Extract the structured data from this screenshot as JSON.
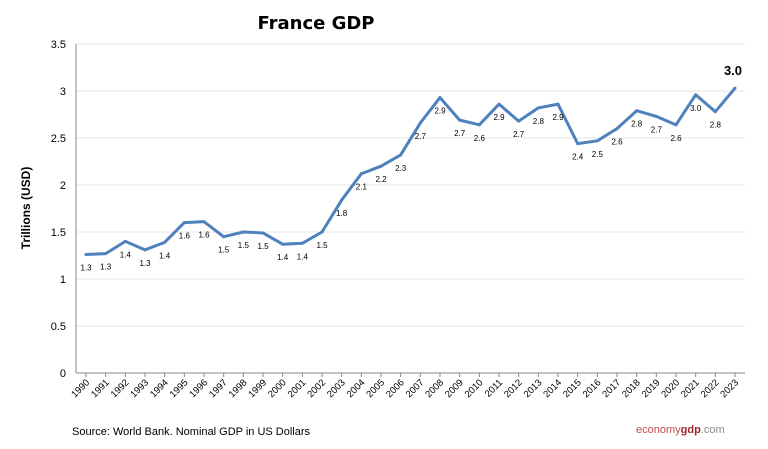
{
  "chart_data": {
    "type": "line",
    "title": "France GDP",
    "xlabel": "",
    "ylabel": "Trillions (USD)",
    "ylim": [
      0,
      3.5
    ],
    "yticks": [
      "0",
      "0.5",
      "1",
      "1.5",
      "2",
      "2.5",
      "3",
      "3.5"
    ],
    "grid": true,
    "line_color": "#4f81bd",
    "x": [
      "1990",
      "1991",
      "1992",
      "1993",
      "1994",
      "1995",
      "1996",
      "1997",
      "1998",
      "1999",
      "2000",
      "2001",
      "2002",
      "2003",
      "2004",
      "2005",
      "2006",
      "2007",
      "2008",
      "2009",
      "2010",
      "2011",
      "2012",
      "2013",
      "2014",
      "2015",
      "2016",
      "2017",
      "2018",
      "2019",
      "2020",
      "2021",
      "2022",
      "2023"
    ],
    "values": [
      1.26,
      1.27,
      1.4,
      1.31,
      1.39,
      1.6,
      1.61,
      1.45,
      1.5,
      1.49,
      1.37,
      1.38,
      1.5,
      1.84,
      2.12,
      2.2,
      2.32,
      2.66,
      2.93,
      2.69,
      2.64,
      2.86,
      2.68,
      2.82,
      2.86,
      2.44,
      2.47,
      2.6,
      2.79,
      2.73,
      2.64,
      2.96,
      2.78,
      3.03
    ],
    "data_labels": [
      "1.3",
      "1.3",
      "1.4",
      "1.3",
      "1.4",
      "1.6",
      "1.6",
      "1.5",
      "1.5",
      "1.5",
      "1.4",
      "1.4",
      "1.5",
      "1.8",
      "2.1",
      "2.2",
      "2.3",
      "2.7",
      "2.9",
      "2.7",
      "2.6",
      "2.9",
      "2.7",
      "2.8",
      "2.9",
      "2.4",
      "2.5",
      "2.6",
      "2.8",
      "2.7",
      "2.6",
      "3.0",
      "2.8",
      "3.0"
    ]
  },
  "footer": {
    "source": "Source: World Bank.  Nominal GDP in US Dollars",
    "logo_part1": "economy",
    "logo_part2": "gdp",
    "logo_part3": ".com"
  }
}
